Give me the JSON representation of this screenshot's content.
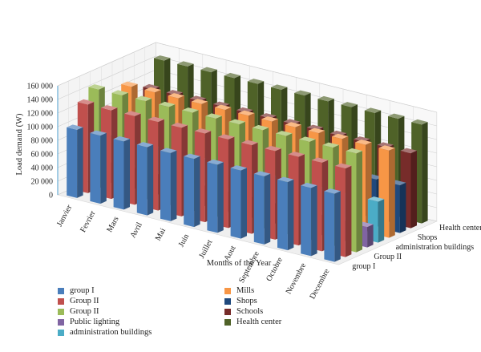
{
  "chart_data": {
    "type": "bar",
    "subtype": "3d-clustered-column",
    "categories": [
      "Janvier",
      "Fevrier",
      "Mars",
      "Avril",
      "Mai",
      "Juin",
      "Juillet",
      "Aout",
      "Septembre",
      "Octobre",
      "Novembre",
      "Decembre"
    ],
    "xlabel": "Months of the Year",
    "ylabel": "Load demand (W)",
    "ylim": [
      0,
      160000
    ],
    "yticks": [
      "0",
      "20 000",
      "40 000",
      "60 000",
      "80 000",
      "100 000",
      "120 000",
      "140 000",
      "160 000"
    ],
    "depth_labels": [
      "group I",
      "Group II",
      "administration buildings",
      "Shops",
      "Health center"
    ],
    "grid": true,
    "legend_position": "bottom",
    "series": [
      {
        "name": "group I",
        "color": "#4a7ebb",
        "values": [
          100000,
          100000,
          100000,
          100000,
          100000,
          100000,
          100000,
          100000,
          100000,
          100000,
          100000,
          100000
        ]
      },
      {
        "name": "Group II",
        "color": "#c0504d",
        "values": [
          130000,
          130000,
          130000,
          130000,
          130000,
          130000,
          130000,
          130000,
          130000,
          130000,
          130000,
          130000
        ]
      },
      {
        "name": "Group II",
        "color": "#9bbb59",
        "values": [
          145000,
          145000,
          145000,
          145000,
          145000,
          145000,
          145000,
          145000,
          145000,
          145000,
          145000,
          145000
        ]
      },
      {
        "name": "Public lighting",
        "color": "#8064a2",
        "values": [
          30000,
          30000,
          30000,
          30000,
          30000,
          30000,
          30000,
          30000,
          30000,
          30000,
          30000,
          30000
        ]
      },
      {
        "name": "administration buildings",
        "color": "#4bacc6",
        "values": [
          60000,
          60000,
          60000,
          60000,
          60000,
          60000,
          60000,
          60000,
          60000,
          60000,
          60000,
          60000
        ]
      },
      {
        "name": "Mills",
        "color": "#f79646",
        "values": [
          128000,
          128000,
          128000,
          128000,
          128000,
          128000,
          128000,
          128000,
          128000,
          128000,
          128000,
          128000
        ]
      },
      {
        "name": "Shops",
        "color": "#1f497d",
        "values": [
          70000,
          70000,
          70000,
          70000,
          70000,
          70000,
          70000,
          70000,
          70000,
          70000,
          70000,
          70000
        ]
      },
      {
        "name": "Schools",
        "color": "#772c2a",
        "values": [
          110000,
          110000,
          110000,
          110000,
          110000,
          110000,
          110000,
          110000,
          110000,
          110000,
          110000,
          110000
        ]
      },
      {
        "name": "Health center",
        "color": "#4f6228",
        "values": [
          145000,
          145000,
          145000,
          145000,
          145000,
          145000,
          145000,
          145000,
          145000,
          145000,
          145000,
          145000
        ]
      }
    ]
  }
}
